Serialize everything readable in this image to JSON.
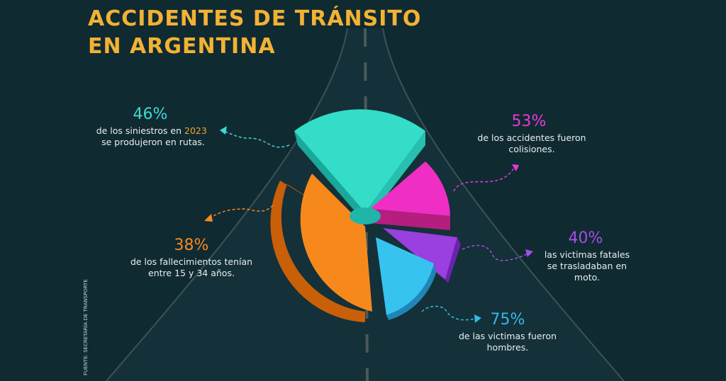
{
  "header": {
    "title_lines": [
      "ACCIDENTES DE TRÁNSITO",
      "EN ARGENTINA"
    ]
  },
  "stats": [
    {
      "value": "46%",
      "lines": [
        "de los siniestros en",
        "se produjeron en rutas."
      ],
      "highlight": "2023"
    },
    {
      "value": "53%",
      "lines": [
        "de los accidentes fueron",
        "colisiones."
      ]
    },
    {
      "value": "40%",
      "lines": [
        "las victimas fatales",
        "se trasladaban en",
        "moto."
      ]
    },
    {
      "value": "75%",
      "lines": [
        "de las victimas fueron",
        "hombres."
      ]
    },
    {
      "value": "38%",
      "lines": [
        "de los fallecimientos  tenían",
        "entre 15 y 34 años."
      ]
    }
  ],
  "source": "FUENTE: SECRETARÍA DE TRANSPORTE"
}
